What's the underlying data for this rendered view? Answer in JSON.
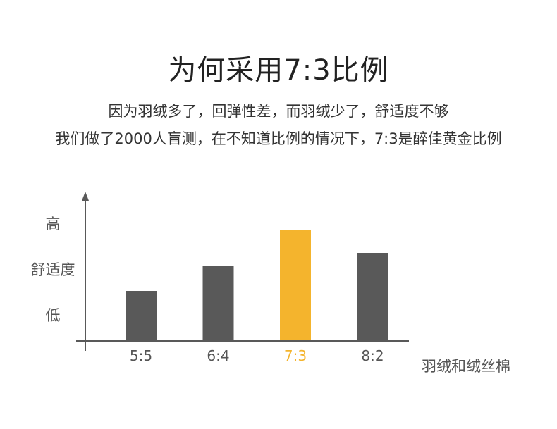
{
  "header": {
    "title": "为何采用7:3比例",
    "subtitle_line1": "因为羽绒多了，回弹性差，而羽绒少了，舒适度不够",
    "subtitle_line2": "我们做了2000人盲测，在不知道比例的情况下，7:3是醉佳黄金比例"
  },
  "chart_data": {
    "type": "bar",
    "title": "",
    "xlabel": "羽绒和绒丝棉",
    "ylabel": "舒适度",
    "y_tick_labels": [
      "低",
      "高"
    ],
    "categories": [
      "5:5",
      "6:4",
      "7:3",
      "8:2"
    ],
    "values": [
      35,
      53,
      78,
      62
    ],
    "ylim": [
      0,
      110
    ],
    "highlight": "7:3",
    "grid": false,
    "legend": "none",
    "colors": {
      "bar": "#595959",
      "highlight": "#F4B42D",
      "axis": "#595959",
      "label": "#555555",
      "highlight_label": "#F4B42D"
    }
  }
}
